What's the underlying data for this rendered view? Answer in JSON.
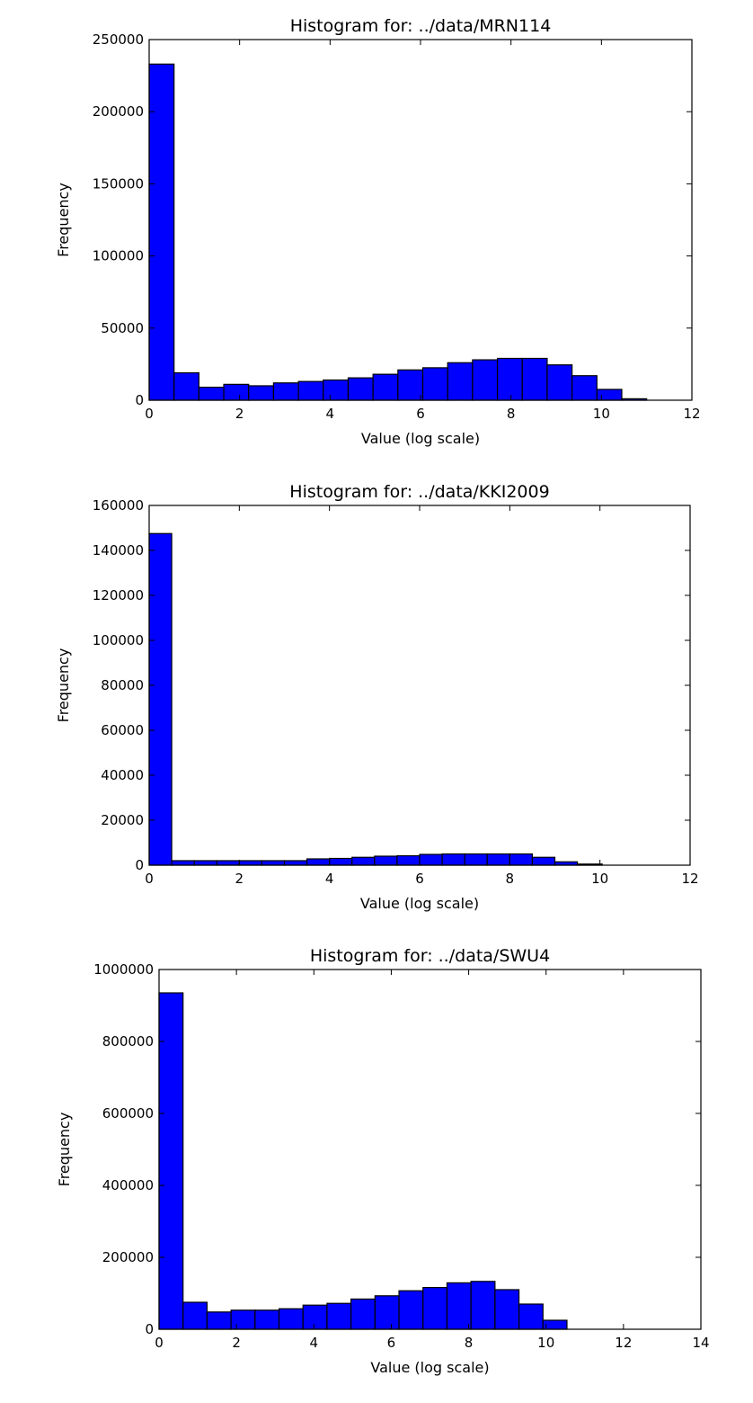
{
  "chart_data": [
    {
      "type": "bar",
      "title": "Histogram for: ../data/MRN114",
      "xlabel": "Value (log scale)",
      "ylabel": "Frequency",
      "xlim": [
        0,
        12
      ],
      "ylim": [
        0,
        250000
      ],
      "xticks": [
        0,
        2,
        4,
        6,
        8,
        10,
        12
      ],
      "yticks": [
        0,
        50000,
        100000,
        150000,
        200000,
        250000
      ],
      "bin_edges": [
        0,
        0.55,
        1.1,
        1.65,
        2.2,
        2.75,
        3.3,
        3.85,
        4.4,
        4.95,
        5.5,
        6.05,
        6.6,
        7.15,
        7.7,
        8.25,
        8.8,
        9.35,
        9.9,
        10.45,
        11.0
      ],
      "values": [
        233000,
        19000,
        9000,
        11000,
        10000,
        12000,
        13000,
        14000,
        15500,
        18000,
        21000,
        22500,
        26000,
        28000,
        29000,
        29000,
        24500,
        17000,
        7500,
        1000
      ],
      "bar_color": "#0000ff",
      "grid": false,
      "legend": "none"
    },
    {
      "type": "bar",
      "title": "Histogram for: ../data/KKI2009",
      "xlabel": "Value (log scale)",
      "ylabel": "Frequency",
      "xlim": [
        0,
        12
      ],
      "ylim": [
        0,
        160000
      ],
      "xticks": [
        0,
        2,
        4,
        6,
        8,
        10,
        12
      ],
      "yticks": [
        0,
        20000,
        40000,
        60000,
        80000,
        100000,
        120000,
        140000,
        160000
      ],
      "bin_edges": [
        0,
        0.5,
        1.0,
        1.5,
        2.0,
        2.5,
        3.0,
        3.5,
        4.0,
        4.5,
        5.0,
        5.5,
        6.0,
        6.5,
        7.0,
        7.5,
        8.0,
        8.5,
        9.0,
        9.5,
        10.05
      ],
      "values": [
        147500,
        2000,
        2000,
        2000,
        2000,
        2000,
        2000,
        2800,
        3000,
        3500,
        4000,
        4200,
        4800,
        5000,
        5000,
        5000,
        5000,
        3500,
        1500,
        500
      ],
      "bar_color": "#0000ff",
      "grid": false,
      "legend": "none"
    },
    {
      "type": "bar",
      "title": "Histogram for: ../data/SWU4",
      "xlabel": "Value (log scale)",
      "ylabel": "Frequency",
      "xlim": [
        0,
        14
      ],
      "ylim": [
        0,
        1000000
      ],
      "xticks": [
        0,
        2,
        4,
        6,
        8,
        10,
        12,
        14
      ],
      "yticks": [
        0,
        200000,
        400000,
        600000,
        800000,
        1000000
      ],
      "bin_edges": [
        0,
        0.62,
        1.24,
        1.86,
        2.48,
        3.1,
        3.72,
        4.34,
        4.96,
        5.58,
        6.2,
        6.82,
        7.44,
        8.06,
        8.68,
        9.3,
        9.92,
        10.54
      ],
      "values": [
        935000,
        75000,
        48000,
        53000,
        53000,
        57000,
        67000,
        72000,
        84000,
        93000,
        107000,
        116000,
        129000,
        133000,
        110000,
        70000,
        25000
      ],
      "bar_color": "#0000ff",
      "grid": false,
      "legend": "none"
    }
  ]
}
